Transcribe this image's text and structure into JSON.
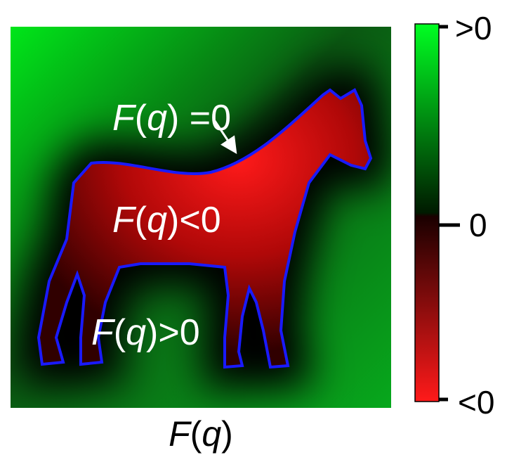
{
  "figure": {
    "labels": [
      [
        "F",
        "(",
        "q",
        ") =0"
      ],
      [
        "F",
        "(",
        "q",
        ")<0"
      ],
      [
        "F",
        "(",
        "q",
        ")>0"
      ]
    ],
    "colorbar": {
      "ticks": [
        ">0",
        "0",
        "<0"
      ]
    },
    "caption": [
      "F",
      "(",
      "q",
      ")"
    ]
  }
}
